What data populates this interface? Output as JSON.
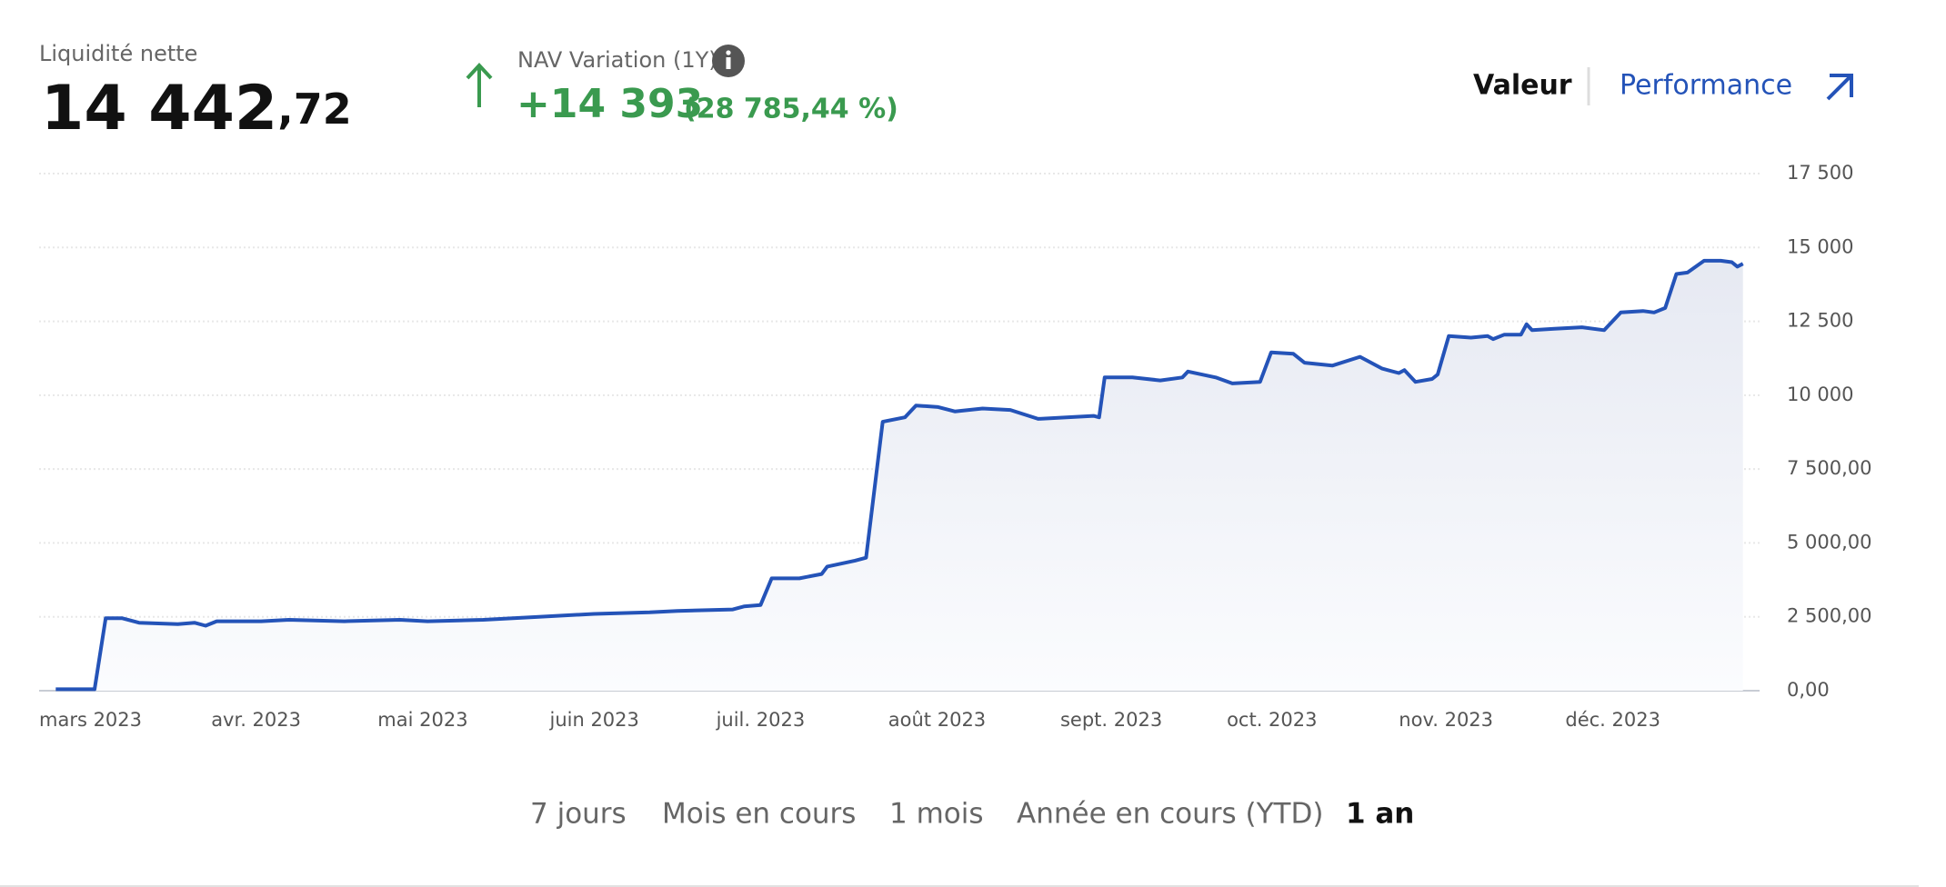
{
  "header": {
    "net_liquidity_label": "Liquidité nette",
    "net_liquidity_int": "14 442",
    "net_liquidity_dec": ",72",
    "nav_label": "NAV Variation (1Y)",
    "nav_change": "+14 393",
    "nav_change_pct": "(28 785,44 %)"
  },
  "toggle": {
    "value": "Valeur",
    "performance": "Performance"
  },
  "ranges": [
    "7 jours",
    "Mois en cours",
    "1 mois",
    "Année en cours (YTD)",
    "1 an"
  ],
  "chart_data": {
    "type": "line",
    "color": "#2453b8",
    "grid": true,
    "x": [
      3,
      10,
      12,
      15,
      18,
      25,
      28,
      30,
      32,
      40,
      45,
      55,
      65,
      70,
      80,
      90,
      100,
      110,
      115,
      125,
      127,
      130,
      132,
      137,
      141,
      142,
      147,
      149,
      152,
      156,
      158,
      162,
      165,
      170,
      175,
      180,
      190,
      191,
      192,
      197,
      202,
      206,
      207,
      212,
      215,
      220,
      222,
      226,
      228,
      233,
      238,
      242,
      245,
      246,
      248,
      251,
      252,
      254,
      258,
      261,
      262,
      264,
      267,
      268,
      269,
      273,
      278,
      282,
      285,
      289,
      291,
      293,
      295,
      297,
      300,
      303,
      305,
      306,
      307
    ],
    "values": [
      50,
      50,
      2450,
      2450,
      2300,
      2250,
      2300,
      2200,
      2350,
      2350,
      2400,
      2350,
      2400,
      2350,
      2400,
      2500,
      2600,
      2650,
      2700,
      2750,
      2850,
      2900,
      3800,
      3800,
      3950,
      4200,
      4400,
      4500,
      9100,
      9250,
      9650,
      9600,
      9450,
      9550,
      9500,
      9200,
      9300,
      9250,
      10600,
      10600,
      10500,
      10600,
      10800,
      10600,
      10400,
      10450,
      11450,
      11400,
      11100,
      11000,
      11300,
      10900,
      10750,
      10850,
      10450,
      10550,
      10700,
      12000,
      11950,
      12000,
      11900,
      12050,
      12050,
      12400,
      12200,
      12250,
      12300,
      12200,
      12800,
      12850,
      12800,
      12950,
      14100,
      14150,
      14550,
      14550,
      14500,
      14350,
      14450
    ],
    "xlim": [
      0,
      310
    ],
    "xticks": [
      {
        "value": 0,
        "label": "mars 2023"
      },
      {
        "value": 31,
        "label": "avr. 2023"
      },
      {
        "value": 61,
        "label": "mai 2023"
      },
      {
        "value": 92,
        "label": "juin 2023"
      },
      {
        "value": 122,
        "label": "juil. 2023"
      },
      {
        "value": 153,
        "label": "août 2023"
      },
      {
        "value": 184,
        "label": "sept. 2023"
      },
      {
        "value": 214,
        "label": "oct. 2023"
      },
      {
        "value": 245,
        "label": "nov. 2023"
      },
      {
        "value": 275,
        "label": "déc. 2023"
      }
    ],
    "ylim": [
      0,
      17500
    ],
    "yticks": [
      {
        "value": 0,
        "label": "0,00"
      },
      {
        "value": 2500,
        "label": "2 500,00"
      },
      {
        "value": 5000,
        "label": "5 000,00"
      },
      {
        "value": 7500,
        "label": "7 500,00"
      },
      {
        "value": 10000,
        "label": "10 000"
      },
      {
        "value": 12500,
        "label": "12 500"
      },
      {
        "value": 15000,
        "label": "15 000"
      },
      {
        "value": 17500,
        "label": "17 500"
      }
    ]
  }
}
